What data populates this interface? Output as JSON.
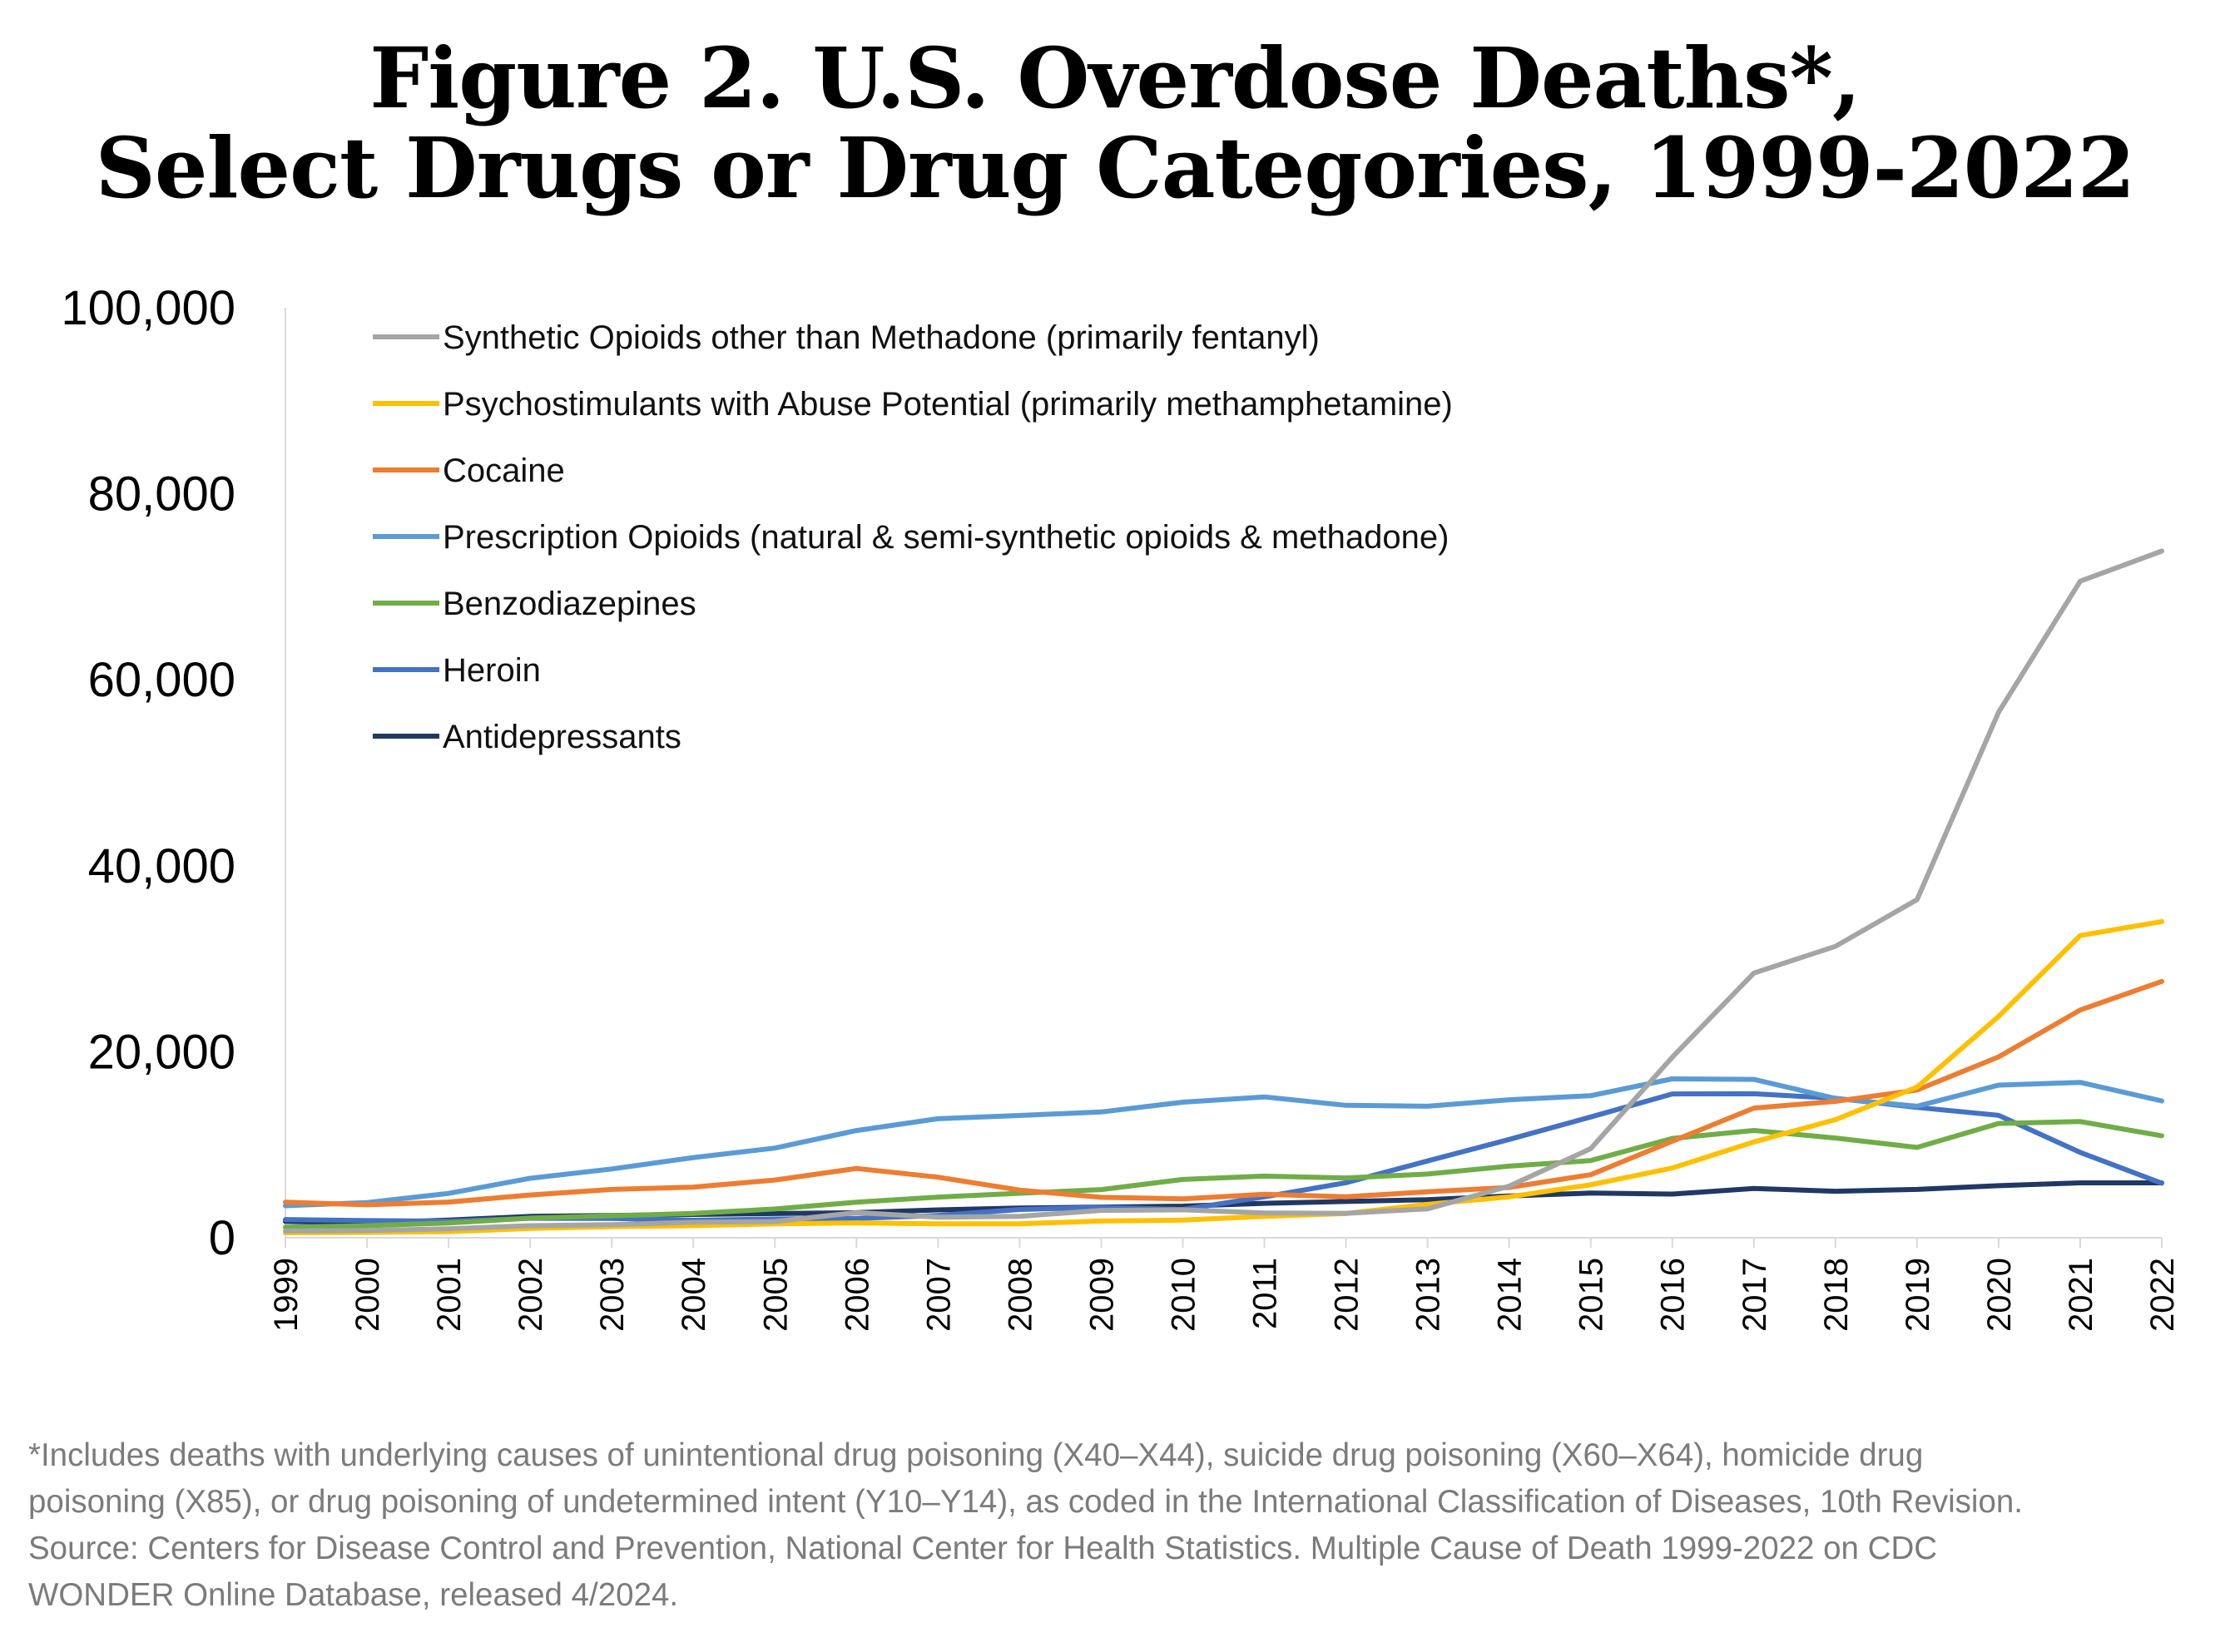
{
  "title_lines": [
    "Figure 2. U.S. Overdose Deaths*,",
    "Select Drugs or Drug Categories, 1999-2022"
  ],
  "chart_data": {
    "type": "line",
    "title": "Figure 2. U.S. Overdose Deaths*, Select Drugs or Drug Categories, 1999-2022",
    "xlabel": "",
    "ylabel": "",
    "ylim": [
      0,
      100000
    ],
    "y_ticks": [
      0,
      20000,
      40000,
      60000,
      80000,
      100000
    ],
    "y_tick_labels": [
      "0",
      "20,000",
      "40,000",
      "60,000",
      "80,000",
      "100,000"
    ],
    "grid": false,
    "legend_position": "top-left",
    "categories": [
      "1999",
      "2000",
      "2001",
      "2002",
      "2003",
      "2004",
      "2005",
      "2006",
      "2007",
      "2008",
      "2009",
      "2010",
      "2011",
      "2012",
      "2013",
      "2014",
      "2015",
      "2016",
      "2017",
      "2018",
      "2019",
      "2020",
      "2021",
      "2022"
    ],
    "series": [
      {
        "name": "Synthetic Opioids other than Methadone (primarily fentanyl)",
        "color": "#a5a5a5",
        "values": [
          730,
          782,
          957,
          1295,
          1400,
          1664,
          1742,
          2707,
          2213,
          2306,
          2946,
          3007,
          2666,
          2628,
          3105,
          5544,
          9580,
          19413,
          28466,
          31335,
          36359,
          56516,
          70601,
          73838
        ]
      },
      {
        "name": "Psychostimulants with Abuse Potential (primarily methamphetamine)",
        "color": "#ffc000",
        "values": [
          547,
          578,
          660,
          1000,
          1200,
          1300,
          1500,
          1600,
          1500,
          1500,
          1800,
          1900,
          2300,
          2600,
          3600,
          4400,
          5700,
          7500,
          10300,
          12700,
          16200,
          23800,
          32500,
          34000
        ]
      },
      {
        "name": "Cocaine",
        "color": "#ed7d31",
        "values": [
          3822,
          3544,
          3833,
          4599,
          5199,
          5443,
          6208,
          7448,
          6512,
          5129,
          4350,
          4183,
          4681,
          4404,
          4944,
          5415,
          6784,
          10375,
          13942,
          14666,
          15883,
          19447,
          24486,
          27569
        ]
      },
      {
        "name": "Prescription Opioids (natural & semi-synthetic opioids & methadone)",
        "color": "#5b9bd5",
        "values": [
          3442,
          3785,
          4770,
          6398,
          7397,
          8622,
          9639,
          11527,
          12796,
          13149,
          13523,
          14583,
          15140,
          14240,
          14145,
          14838,
          15281,
          17087,
          17029,
          14975,
          14139,
          16416,
          16706,
          14716
        ]
      },
      {
        "name": "Benzodiazepines",
        "color": "#70ad47",
        "values": [
          1135,
          1298,
          1594,
          2115,
          2364,
          2616,
          3092,
          3817,
          4372,
          4788,
          5177,
          6270,
          6629,
          6432,
          6849,
          7700,
          8300,
          10684,
          11537,
          10724,
          9711,
          12290,
          12499,
          10964
        ]
      },
      {
        "name": "Heroin",
        "color": "#4472c4",
        "values": [
          1960,
          1842,
          1779,
          2089,
          2080,
          1878,
          2009,
          2088,
          2399,
          3041,
          3278,
          3036,
          4397,
          5925,
          8257,
          10574,
          12989,
          15469,
          15482,
          14996,
          14019,
          13165,
          9173,
          5871
        ]
      },
      {
        "name": "Antidepressants",
        "color": "#203864",
        "values": [
          1749,
          1600,
          1900,
          2300,
          2400,
          2500,
          2600,
          2700,
          3000,
          3200,
          3300,
          3400,
          3700,
          3900,
          4100,
          4500,
          4800,
          4700,
          5300,
          5000,
          5200,
          5600,
          5900,
          5900
        ]
      }
    ]
  },
  "footnote": [
    "*Includes deaths with underlying causes of unintentional drug poisoning (X40–X44), suicide drug poisoning (X60–X64), homicide drug",
    "poisoning (X85), or drug poisoning of undetermined intent (Y10–Y14), as coded in the International Classification of Diseases, 10th Revision.",
    "Source: Centers for Disease Control and Prevention, National Center for Health Statistics. Multiple Cause of Death 1999-2022 on CDC",
    "WONDER Online Database, released 4/2024."
  ]
}
